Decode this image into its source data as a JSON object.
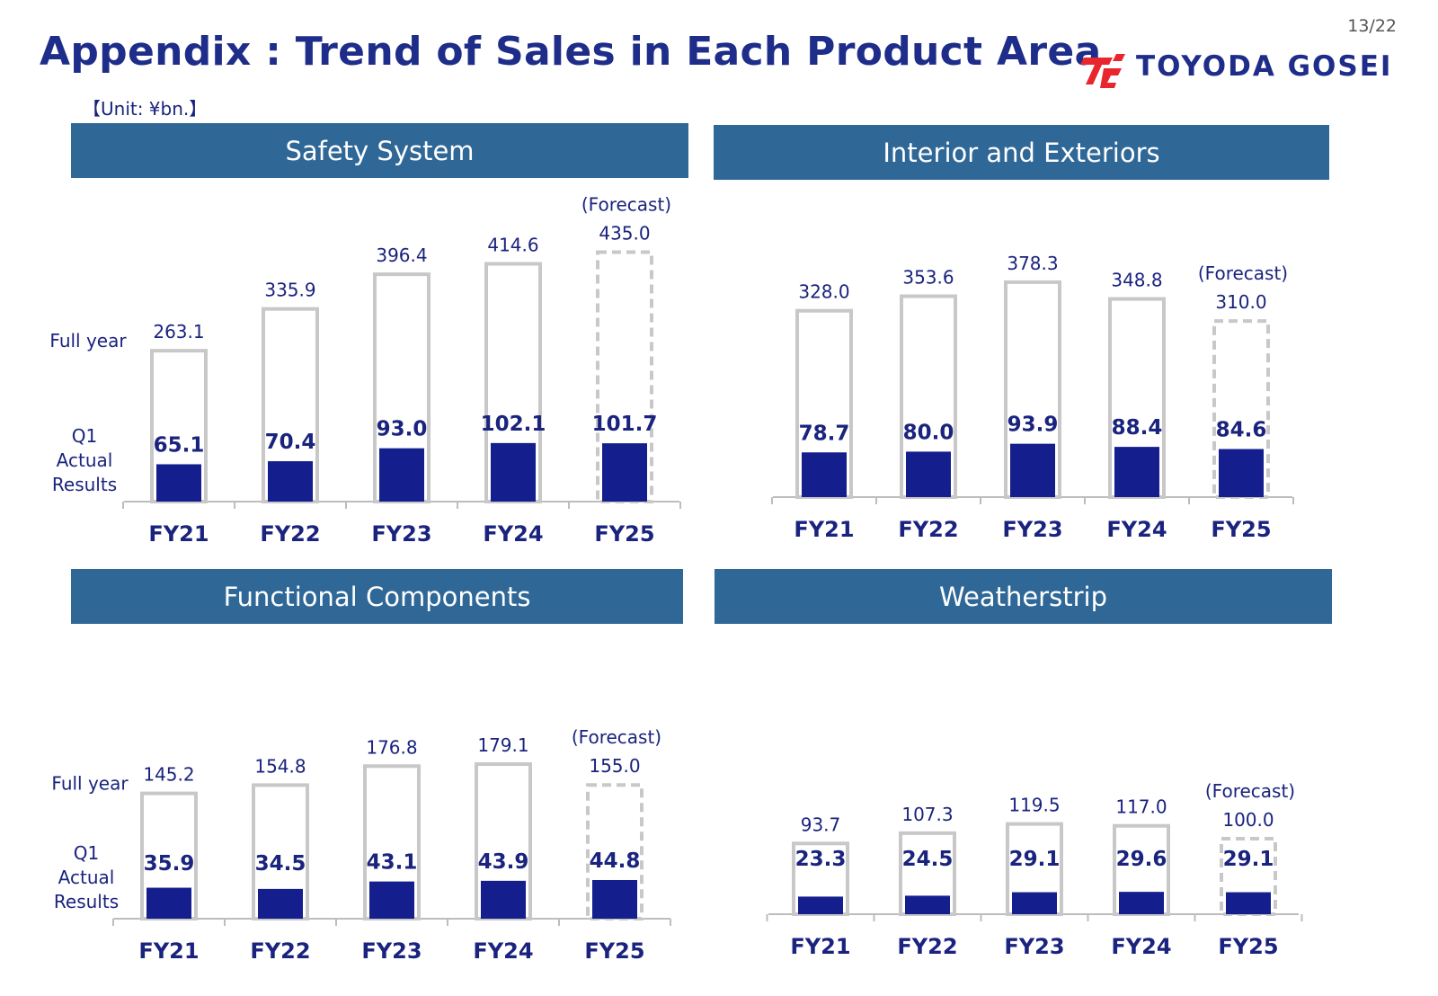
{
  "page": {
    "number": "13/22",
    "title": "Appendix : Trend of Sales in Each Product Area",
    "unit": "【Unit: ¥bn.】"
  },
  "logo": {
    "text": "TOYODA GOSEI"
  },
  "colors": {
    "header_bg": "#2f6797",
    "bar_fill": "#141e8c",
    "outline": "#c8c8c8",
    "text": "#1a237e"
  },
  "chart_data": [
    {
      "type": "bar",
      "title": "Safety System",
      "categories": [
        "FY21",
        "FY22",
        "FY23",
        "FY24",
        "FY25"
      ],
      "series": [
        {
          "name": "Full year",
          "values": [
            263.1,
            335.9,
            396.4,
            414.6,
            435.0
          ]
        },
        {
          "name": "Q1 Actual Results",
          "values": [
            65.1,
            70.4,
            93.0,
            102.1,
            101.7
          ]
        }
      ],
      "value_labels_fy": [
        "263.1",
        "335.9",
        "396.4",
        "414.6",
        "435.0"
      ],
      "value_labels_q1": [
        "65.1",
        "70.4",
        "93.0",
        "102.1",
        "101.7"
      ],
      "forecast_index": 4,
      "forecast_label": "(Forecast)",
      "label_fullyear": "Full year",
      "label_q1": [
        "Q1",
        "Actual",
        "Results"
      ]
    },
    {
      "type": "bar",
      "title": "Interior and Exteriors",
      "categories": [
        "FY21",
        "FY22",
        "FY23",
        "FY24",
        "FY25"
      ],
      "series": [
        {
          "name": "Full year",
          "values": [
            328.0,
            353.6,
            378.3,
            348.8,
            310.0
          ]
        },
        {
          "name": "Q1 Actual Results",
          "values": [
            78.7,
            80.0,
            93.9,
            88.4,
            84.6
          ]
        }
      ],
      "value_labels_fy": [
        "328.0",
        "353.6",
        "378.3",
        "348.8",
        "310.0"
      ],
      "value_labels_q1": [
        "78.7",
        "80.0",
        "93.9",
        "88.4",
        "84.6"
      ],
      "forecast_index": 4,
      "forecast_label": "(Forecast)",
      "label_fullyear": "",
      "label_q1": []
    },
    {
      "type": "bar",
      "title": "Functional Components",
      "categories": [
        "FY21",
        "FY22",
        "FY23",
        "FY24",
        "FY25"
      ],
      "series": [
        {
          "name": "Full year",
          "values": [
            145.2,
            154.8,
            176.8,
            179.1,
            155.0
          ]
        },
        {
          "name": "Q1 Actual Results",
          "values": [
            35.9,
            34.5,
            43.1,
            43.9,
            44.8
          ]
        }
      ],
      "value_labels_fy": [
        "145.2",
        "154.8",
        "176.8",
        "179.1",
        "155.0"
      ],
      "value_labels_q1": [
        "35.9",
        "34.5",
        "43.1",
        "43.9",
        "44.8"
      ],
      "forecast_index": 4,
      "forecast_label": "(Forecast)",
      "label_fullyear": "Full year",
      "label_q1": [
        "Q1",
        "Actual",
        "Results"
      ]
    },
    {
      "type": "bar",
      "title": "Weatherstrip",
      "categories": [
        "FY21",
        "FY22",
        "FY23",
        "FY24",
        "FY25"
      ],
      "series": [
        {
          "name": "Full year",
          "values": [
            93.7,
            107.3,
            119.5,
            117.0,
            100.0
          ]
        },
        {
          "name": "Q1 Actual Results",
          "values": [
            23.3,
            24.5,
            29.1,
            29.6,
            29.1
          ]
        }
      ],
      "value_labels_fy": [
        "93.7",
        "107.3",
        "119.5",
        "117.0",
        "100.0"
      ],
      "value_labels_q1": [
        "23.3",
        "24.5",
        "29.1",
        "29.6",
        "29.1"
      ],
      "forecast_index": 4,
      "forecast_label": "(Forecast)",
      "label_fullyear": "",
      "label_q1": []
    }
  ]
}
